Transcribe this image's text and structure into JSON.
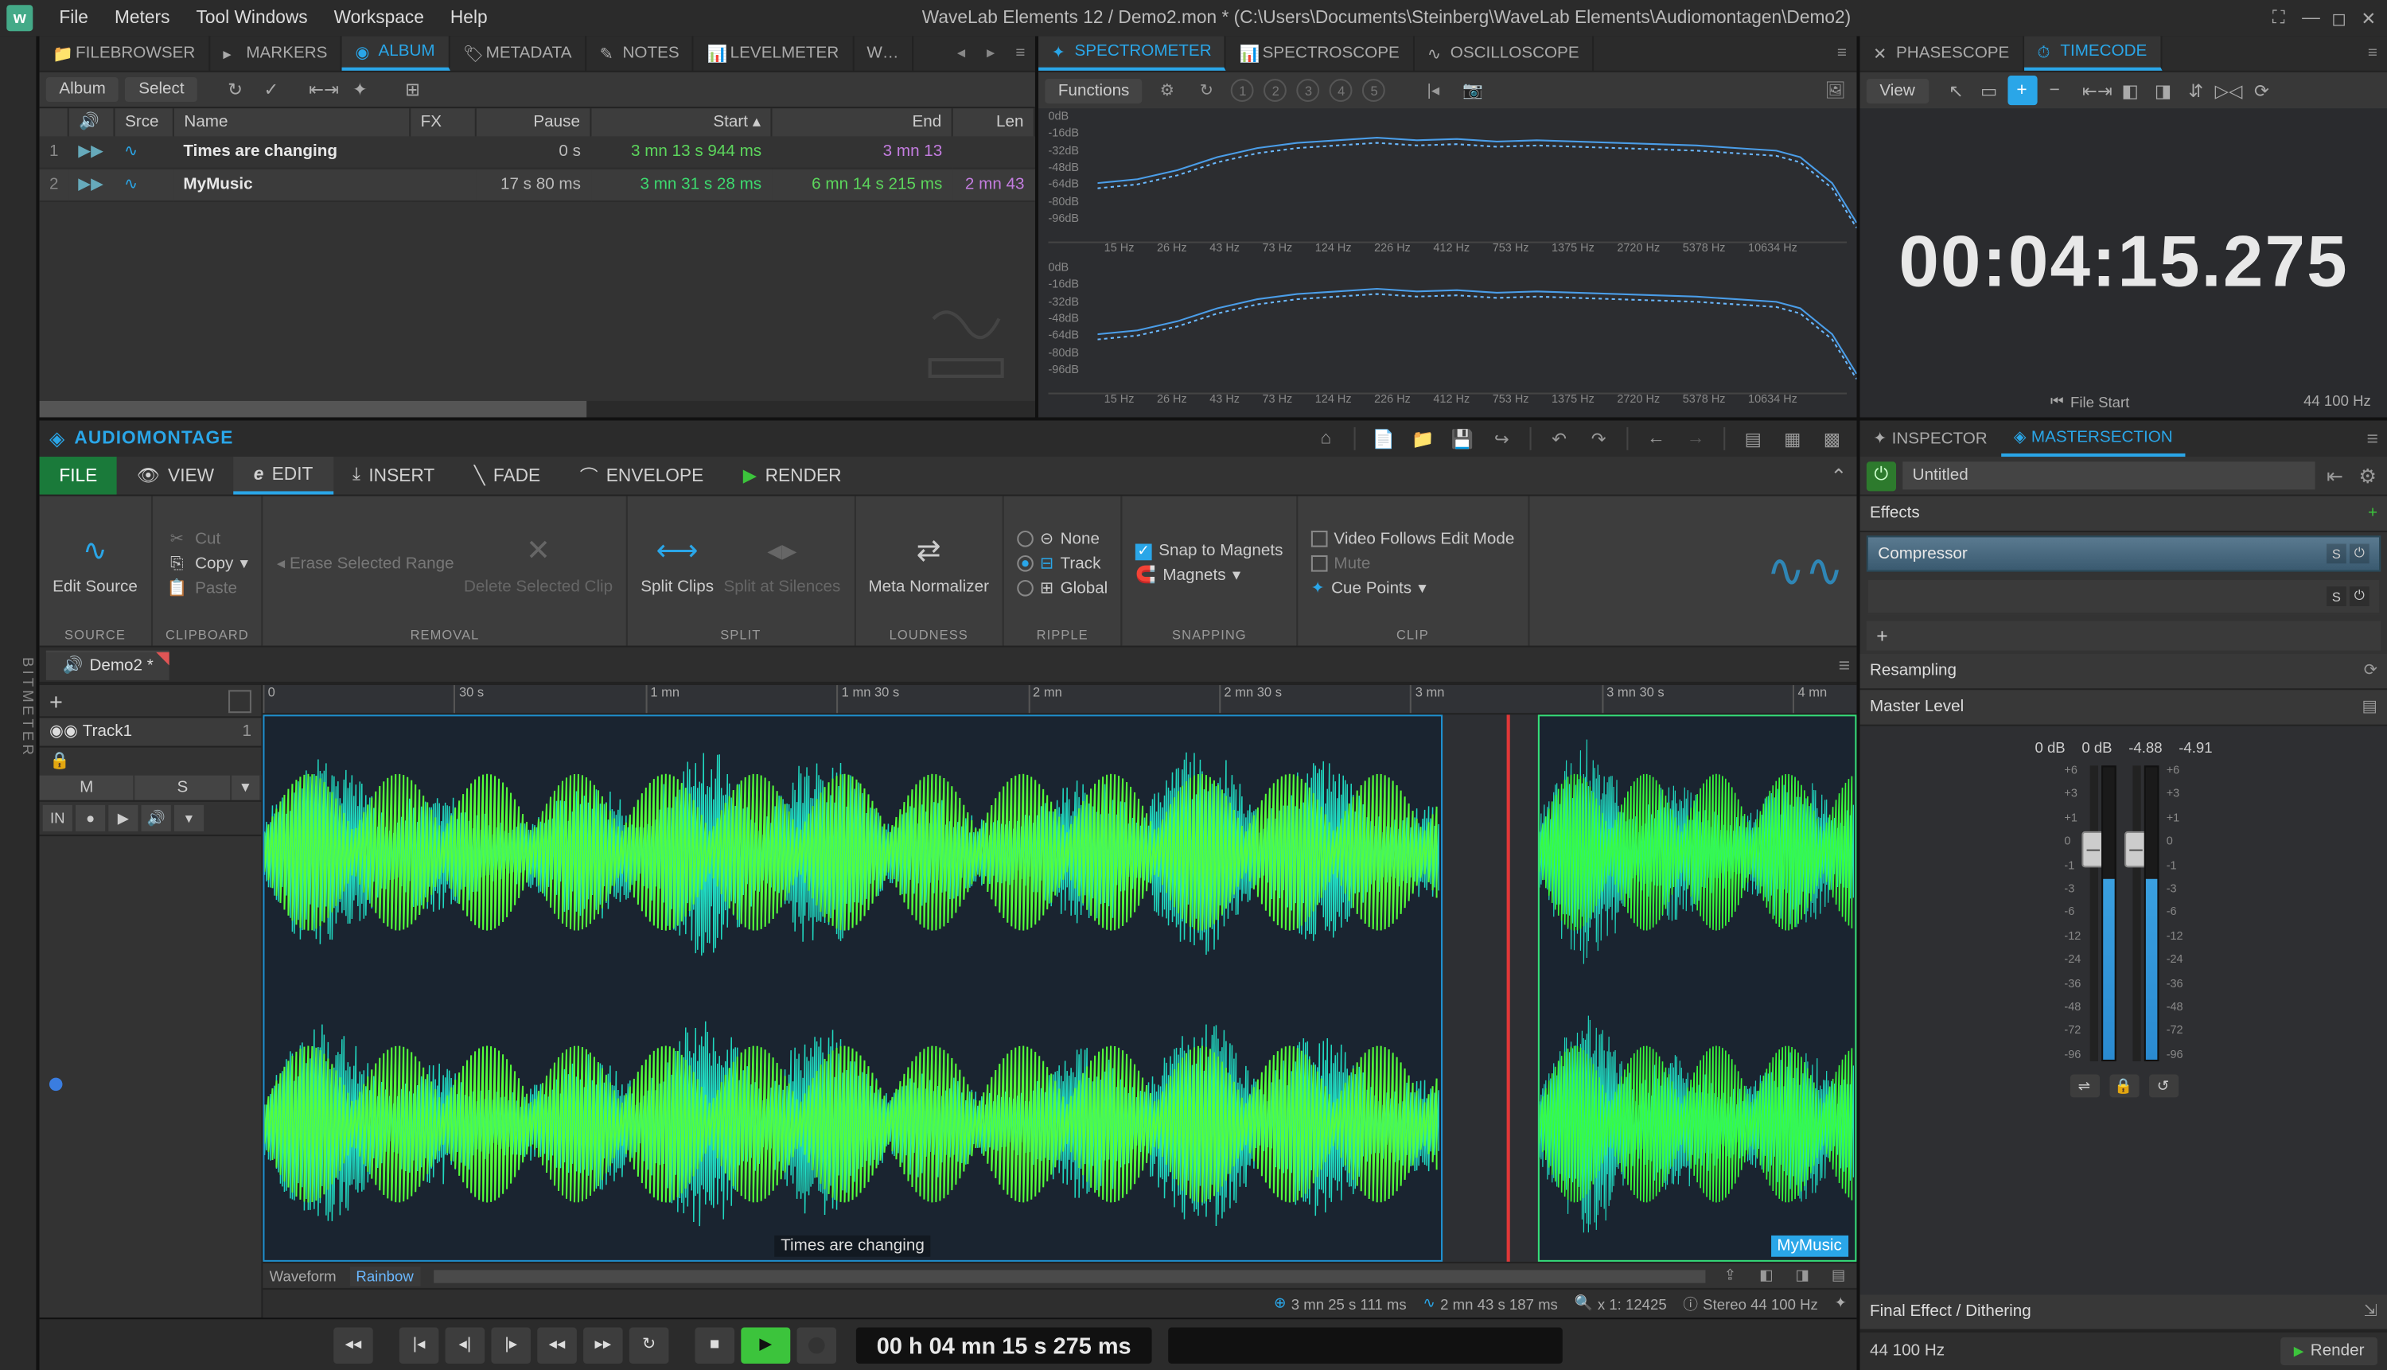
{
  "window": {
    "title": "WaveLab Elements 12 / Demo2.mon * (C:\\Users\\Documents\\Steinberg\\WaveLab Elements\\Audiomontagen\\Demo2)"
  },
  "menu": [
    "File",
    "Meters",
    "Tool Windows",
    "Workspace",
    "Help"
  ],
  "top_tabs_left": [
    {
      "label": "FILEBROWSER",
      "active": false
    },
    {
      "label": "MARKERS",
      "active": false
    },
    {
      "label": "ALBUM",
      "active": true
    },
    {
      "label": "METADATA",
      "active": false
    },
    {
      "label": "NOTES",
      "active": false
    },
    {
      "label": "LEVELMETER",
      "active": false
    },
    {
      "label": "W…",
      "active": false
    }
  ],
  "top_tabs_mid": [
    {
      "label": "SPECTROMETER",
      "active": true
    },
    {
      "label": "SPECTROSCOPE",
      "active": false
    },
    {
      "label": "OSCILLOSCOPE",
      "active": false
    }
  ],
  "top_tabs_right": [
    {
      "label": "PHASESCOPE",
      "active": false
    },
    {
      "label": "TIMECODE",
      "active": true
    }
  ],
  "album": {
    "tools": {
      "album": "Album",
      "select": "Select"
    },
    "columns": [
      "",
      "",
      "Srce",
      "Name",
      "FX",
      "Pause",
      "Start",
      "End",
      "Len"
    ],
    "rows": [
      {
        "n": "1",
        "name": "Times are changing",
        "pause": "0 s",
        "start": "3 mn 13 s 944 ms",
        "end": "3 mn 13",
        "len": ""
      },
      {
        "n": "2",
        "name": "MyMusic",
        "pause": "17 s 80 ms",
        "start": "3 mn 31 s 28 ms",
        "end": "6 mn 14 s 215 ms",
        "len": "2 mn 43"
      }
    ]
  },
  "spectrometer": {
    "functions": "Functions",
    "ylabels": [
      "0dB",
      "-16dB",
      "-32dB",
      "-48dB",
      "-64dB",
      "-80dB",
      "-96dB"
    ],
    "xlabels": [
      "15 Hz",
      "26 Hz",
      "43 Hz",
      "73 Hz",
      "124 Hz",
      "226 Hz",
      "412 Hz",
      "753 Hz",
      "1375 Hz",
      "2720 Hz",
      "5378 Hz",
      "10634 Hz"
    ],
    "curve_color": "#4a9de8",
    "curve_color2": "#6ab8ff",
    "bg": "#2c2d30",
    "curve": [
      [
        0,
        55
      ],
      [
        5,
        52
      ],
      [
        10,
        45
      ],
      [
        15,
        35
      ],
      [
        20,
        28
      ],
      [
        25,
        24
      ],
      [
        30,
        22
      ],
      [
        35,
        20
      ],
      [
        40,
        22
      ],
      [
        45,
        21
      ],
      [
        50,
        23
      ],
      [
        55,
        22
      ],
      [
        60,
        23
      ],
      [
        65,
        24
      ],
      [
        70,
        25
      ],
      [
        75,
        26
      ],
      [
        80,
        28
      ],
      [
        85,
        30
      ],
      [
        88,
        35
      ],
      [
        92,
        55
      ],
      [
        95,
        85
      ],
      [
        100,
        88
      ]
    ]
  },
  "timecode": {
    "view": "View",
    "value": "00:04:15.275",
    "file_start": "File Start",
    "sample_rate": "44 100 Hz"
  },
  "audiomontage": {
    "title": "AUDIOMONTAGE",
    "ribbon_tabs": [
      {
        "label": "FILE",
        "icon": "▣"
      },
      {
        "label": "VIEW",
        "icon": "👁"
      },
      {
        "label": "EDIT",
        "icon": "e",
        "active": true
      },
      {
        "label": "INSERT",
        "icon": "↓"
      },
      {
        "label": "FADE",
        "icon": "╲"
      },
      {
        "label": "ENVELOPE",
        "icon": "⌒"
      },
      {
        "label": "RENDER",
        "icon": "▶"
      }
    ],
    "ribbon": {
      "source": {
        "label": "SOURCE",
        "btn": "Edit Source",
        "icon_color": "#2aa6e8"
      },
      "clipboard": {
        "label": "CLIPBOARD",
        "cut": "Cut",
        "copy": "Copy",
        "paste": "Paste"
      },
      "removal": {
        "label": "REMOVAL",
        "erase": "Erase Selected Range",
        "delete": "Delete Selected Clip"
      },
      "split": {
        "label": "SPLIT",
        "split_clips": "Split Clips",
        "split_silence": "Split at Silences"
      },
      "loudness": {
        "label": "LOUDNESS",
        "meta": "Meta Normalizer"
      },
      "ripple": {
        "label": "RIPPLE",
        "none": "None",
        "track": "Track",
        "global": "Global",
        "selected": "Track"
      },
      "snapping": {
        "label": "SNAPPING",
        "snap": "Snap to Magnets",
        "magnets": "Magnets"
      },
      "clip": {
        "label": "CLIP",
        "video": "Video Follows Edit Mode",
        "mute": "Mute",
        "cue": "Cue Points"
      }
    },
    "file_tab": "Demo2 *",
    "ruler_marks": [
      "0",
      "30 s",
      "1 mn",
      "1 mn 30 s",
      "2 mn",
      "2 mn 30 s",
      "3 mn",
      "3 mn 30 s",
      "4 mn"
    ],
    "track": {
      "name": "Track1",
      "num": "1",
      "btns": [
        "M",
        "S"
      ],
      "btns2": [
        "IN",
        "●",
        "▶",
        "🔊"
      ]
    },
    "clips": [
      {
        "label": "Times are changing",
        "start_pct": 0,
        "width_pct": 74,
        "sel": false,
        "color1": "#20d8c0",
        "color2": "#55ff3a"
      },
      {
        "label": "MyMusic",
        "start_pct": 80,
        "width_pct": 20,
        "sel": true,
        "color1": "#20d8c0",
        "color2": "#3aff3a"
      }
    ],
    "playhead_pct": 78,
    "waveform_footer": {
      "waveform": "Waveform",
      "rainbow": "Rainbow"
    },
    "status": {
      "cursor": "3 mn 25 s 111 ms",
      "sel": "2 mn 43 s 187 ms",
      "zoom": "x 1: 12425",
      "fmt": "Stereo 44 100 Hz"
    }
  },
  "transport": {
    "time": "00 h 04 mn 15 s 275 ms"
  },
  "inspector_tabs": [
    {
      "label": "INSPECTOR",
      "active": false
    },
    {
      "label": "MASTERSECTION",
      "active": true
    }
  ],
  "master": {
    "preset": "Untitled",
    "effects_label": "Effects",
    "slots": [
      {
        "name": "Compressor"
      }
    ],
    "resampling": "Resampling",
    "master_level": "Master Level",
    "db_values": [
      "0 dB",
      "0 dB",
      "-4.88",
      "-4.91"
    ],
    "scale": [
      "+6",
      "+3",
      "+1",
      "0",
      "-1",
      "-3",
      "-6",
      "-12",
      "-24",
      "-36",
      "-48",
      "-72",
      "-96"
    ],
    "meter_fill_pct": [
      62,
      62
    ],
    "fader_pos_pct": 22,
    "final": "Final Effect / Dithering",
    "render_rate": "44 100 Hz",
    "render": "Render"
  },
  "colors": {
    "accent": "#2aa6e8",
    "green": "#3cc43c",
    "bg_dark": "#2b2b2b"
  }
}
